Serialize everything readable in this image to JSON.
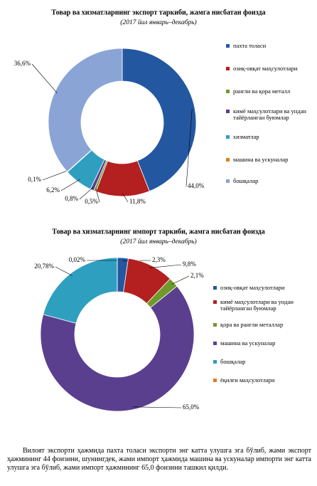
{
  "chart_data": [
    {
      "type": "donut",
      "title": "Товар ва хизматларнинг экспорт таркиби, жамга нисбатан фоизда",
      "subtitle": "(2017 йил январь–декабрь)",
      "categories": [
        "пахта толаси",
        "озиқ-овқат маҳсулотлари",
        "рангли ва қора металл",
        "кимё маҳсулотлари ва ундан тайёрланган буюмлар",
        "хизматлар",
        "машина ва ускуналар",
        "бошқалар"
      ],
      "values": [
        44.0,
        11.8,
        0.5,
        0.8,
        6.2,
        0.1,
        36.6
      ],
      "value_labels": [
        "44,0%",
        "11,8%",
        "0,5%",
        "0,8%",
        "6,2%",
        "0,1%",
        "36,6%"
      ],
      "colors": [
        "#2357a0",
        "#b3201f",
        "#6f9a2a",
        "#5b3f8f",
        "#2f9fbf",
        "#e07d22",
        "#8aa4d6"
      ]
    },
    {
      "type": "donut",
      "title": "Товар ва хизматларнинг импорт таркиби, жамга нисбатан фоизда",
      "subtitle": "(2017 йил январь–декабрь)",
      "categories": [
        "озиқ-овқат маҳсулотлари",
        "кимё маҳсулотлари ва ундан тайёрланган буюмлар",
        "қора ва рангли металлар",
        "машина ва ускуналар",
        "бошқалар",
        "ёқилғи маҳсулотлари"
      ],
      "values": [
        2.3,
        9.8,
        2.1,
        65.0,
        20.78,
        0.02
      ],
      "value_labels": [
        "2,3%",
        "9,8%",
        "2,1%",
        "65,0%",
        "20,78%",
        "0,02%"
      ],
      "colors": [
        "#2357a0",
        "#b3201f",
        "#6f9a2a",
        "#5b3f8f",
        "#2f9fbf",
        "#e07d22"
      ]
    }
  ],
  "paragraph": "Вилоят экспорти ҳажмида пахта толаси экспорти энг катта улушга эга бўлиб, жами экспорт ҳажмининг 44 фоизини, шунингдек, жами импорт ҳажмида машина ва ускуналар импорти энг катта улушга эга бўлиб, жами импорт ҳажмининг 65,0 фоизини ташкил қилди."
}
